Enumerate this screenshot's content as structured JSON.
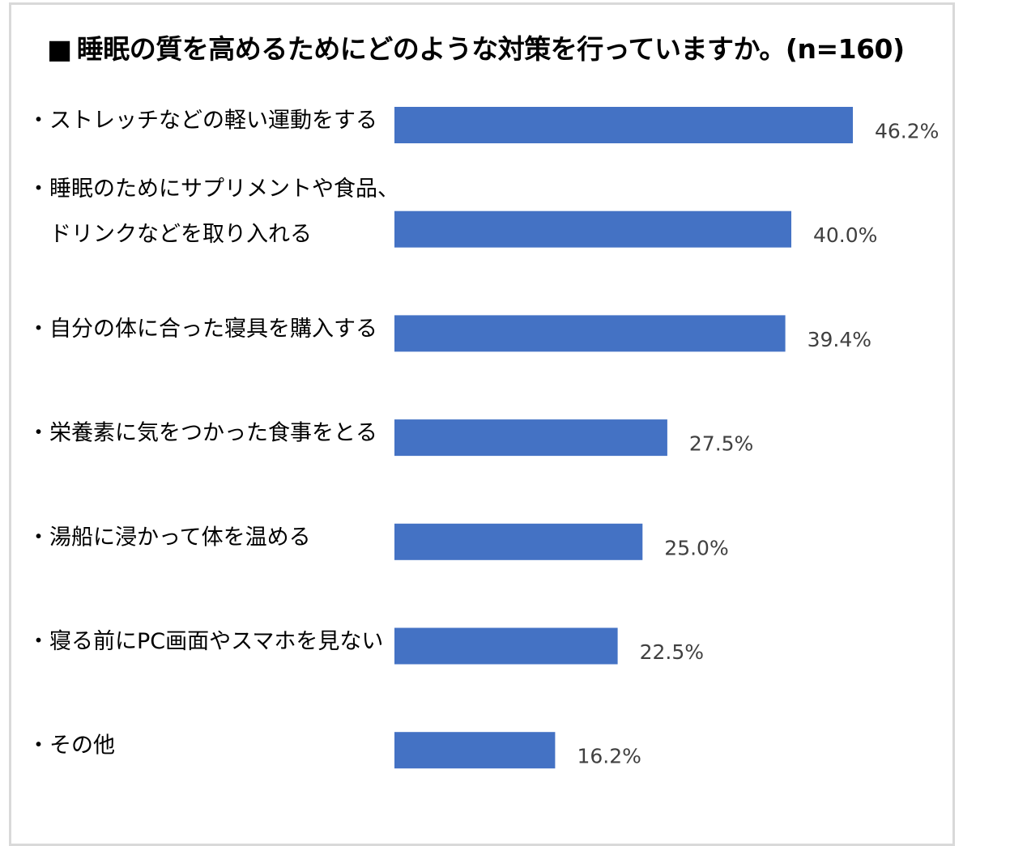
{
  "chart_data": {
    "type": "bar",
    "orientation": "horizontal",
    "title": "睡眠の質を高めるためにどのような対策を行っていますか。(n=160)",
    "title_marker": "■",
    "categories": [
      [
        "・ストレッチなどの軽い運動をする"
      ],
      [
        "・睡眠のためにサプリメントや食品、",
        "　ドリンクなどを取り入れる"
      ],
      [
        "・自分の体に合った寝具を購入する"
      ],
      [
        "・栄養素に気をつかった食事をとる"
      ],
      [
        "・湯船に浸かって体を温める"
      ],
      [
        "・寝る前にPC画面やスマホを見ない"
      ],
      [
        "・その他"
      ]
    ],
    "values": [
      46.2,
      40.0,
      39.4,
      27.5,
      25.0,
      22.5,
      16.2
    ],
    "value_labels": [
      "46.2%",
      "40.0%",
      "39.4%",
      "27.5%",
      "25.0%",
      "22.5%",
      "16.2%"
    ],
    "unit": "%",
    "bar_color": "#4472c4",
    "grid": false,
    "legend": "none"
  }
}
